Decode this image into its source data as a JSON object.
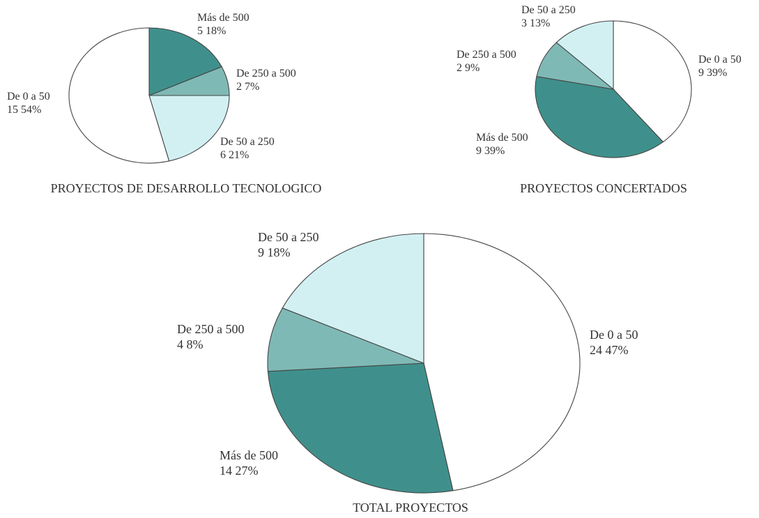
{
  "chart_data": [
    {
      "type": "pie",
      "title": "PROYECTOS DE DESARROLLO TECNOLOGICO",
      "slices": [
        {
          "label": "Más de 500",
          "count": "5",
          "percent": "18%",
          "value": 18,
          "color": "#3f908c"
        },
        {
          "label": "De 250 a 500",
          "count": "2",
          "percent": "7%",
          "value": 7,
          "color": "#7fb9b5"
        },
        {
          "label": "De 50 a 250",
          "count": "6",
          "percent": "21%",
          "value": 21,
          "color": "#d2f0f2"
        },
        {
          "label": "De 0 a 50",
          "count": "15",
          "percent": "54%",
          "value": 54,
          "color": "#ffffff"
        }
      ]
    },
    {
      "type": "pie",
      "title": "PROYECTOS CONCERTADOS",
      "slices": [
        {
          "label": "De 0 a 50",
          "count": "9",
          "percent": "39%",
          "value": 39,
          "color": "#ffffff"
        },
        {
          "label": "Más de 500",
          "count": "9",
          "percent": "39%",
          "value": 39,
          "color": "#3f908c"
        },
        {
          "label": "De 250 a 500",
          "count": "2",
          "percent": "9%",
          "value": 9,
          "color": "#7fb9b5"
        },
        {
          "label": "De 50 a 250",
          "count": "3",
          "percent": "13%",
          "value": 13,
          "color": "#d2f0f2"
        }
      ]
    },
    {
      "type": "pie",
      "title": "TOTAL PROYECTOS",
      "slices": [
        {
          "label": "De 0 a 50",
          "count": "24",
          "percent": "47%",
          "value": 47,
          "color": "#ffffff"
        },
        {
          "label": "Más de 500",
          "count": "14",
          "percent": "27%",
          "value": 27,
          "color": "#3f908c"
        },
        {
          "label": "De 250 a 500",
          "count": "4",
          "percent": "8%",
          "value": 8,
          "color": "#7fb9b5"
        },
        {
          "label": "De 50 a 250",
          "count": "9",
          "percent": "18%",
          "value": 18,
          "color": "#d2f0f2"
        }
      ]
    }
  ]
}
